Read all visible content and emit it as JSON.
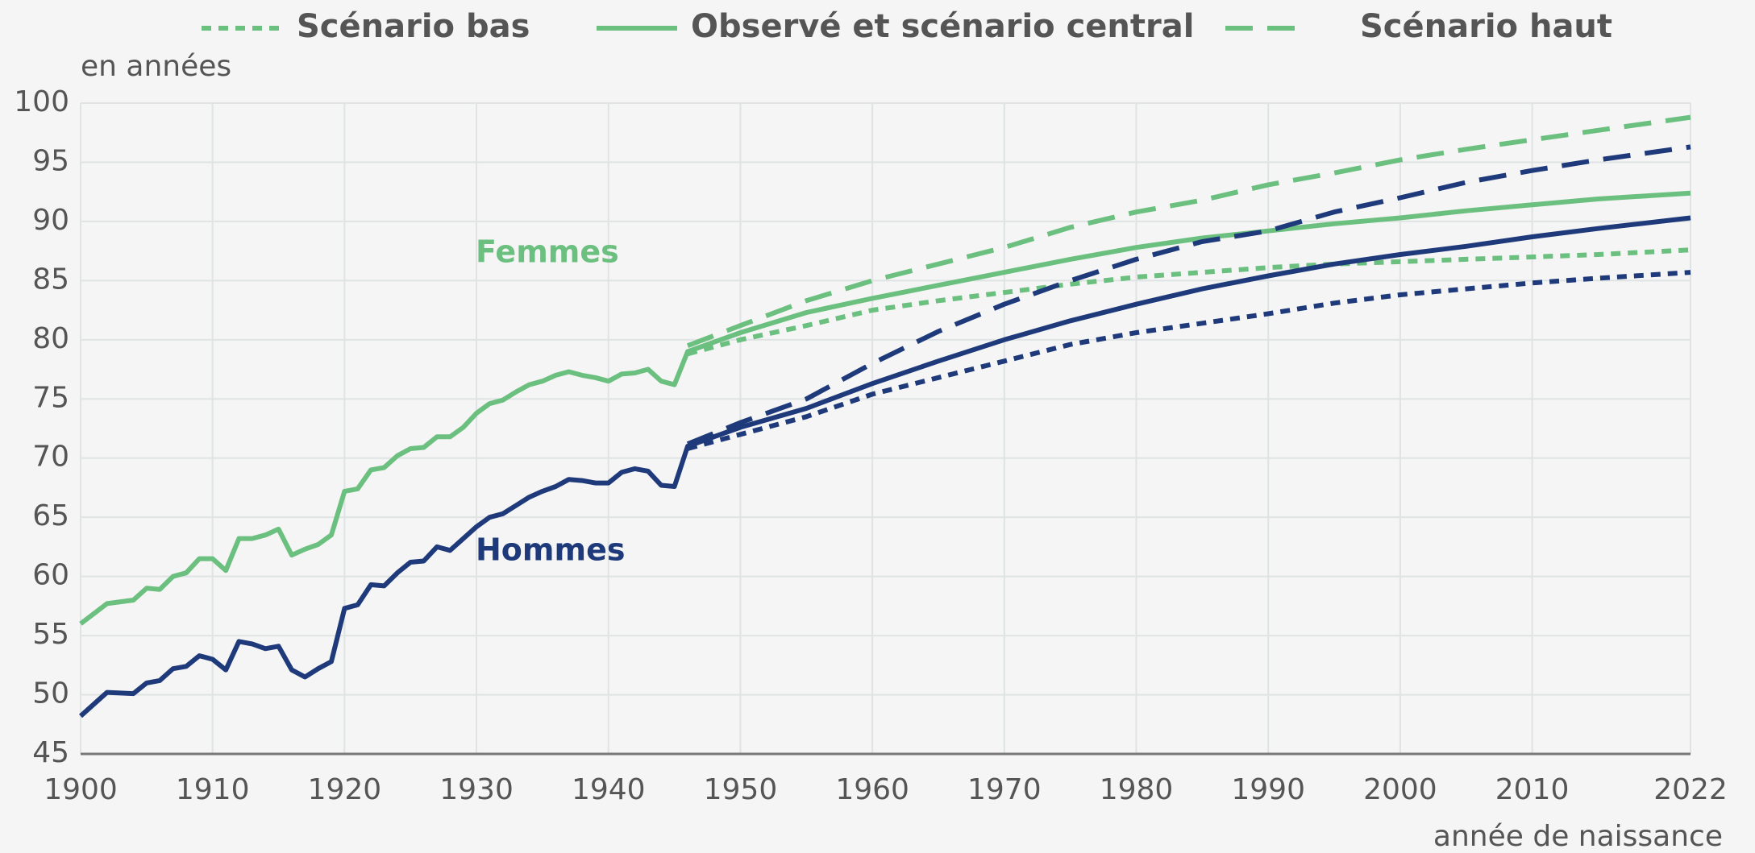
{
  "chart_data": {
    "type": "line",
    "y_label": "en années",
    "x_label": "année de naissance",
    "xlim": [
      1900,
      2022
    ],
    "xticks": [
      1900,
      1910,
      1920,
      1930,
      1940,
      1950,
      1960,
      1970,
      1980,
      1990,
      2000,
      2010,
      2022
    ],
    "ylim": [
      45,
      100
    ],
    "yticks": [
      45,
      50,
      55,
      60,
      65,
      70,
      75,
      80,
      85,
      90,
      95,
      100
    ],
    "grid": true,
    "legend": {
      "position": "top",
      "entries": [
        {
          "name": "Scénario bas",
          "style": "short-dash",
          "scenario": "bas"
        },
        {
          "name": "Observé et scénario central",
          "style": "solid",
          "scenario": "central"
        },
        {
          "name": "Scénario haut",
          "style": "long-dash",
          "scenario": "haut"
        }
      ]
    },
    "series": [
      {
        "name": "Femmes",
        "color": "#6cc07f",
        "central": {
          "x": [
            1900,
            1902,
            1904,
            1905,
            1906,
            1907,
            1908,
            1909,
            1910,
            1911,
            1912,
            1913,
            1914,
            1915,
            1916,
            1917,
            1918,
            1919,
            1920,
            1921,
            1922,
            1923,
            1924,
            1925,
            1926,
            1927,
            1928,
            1929,
            1930,
            1931,
            1932,
            1933,
            1934,
            1935,
            1936,
            1937,
            1938,
            1939,
            1940,
            1941,
            1942,
            1943,
            1944,
            1945,
            1946,
            1950,
            1955,
            1960,
            1965,
            1970,
            1975,
            1980,
            1985,
            1990,
            1995,
            2000,
            2005,
            2010,
            2015,
            2022
          ],
          "values": [
            56,
            57.7,
            58,
            59,
            58.9,
            60,
            60.3,
            61.5,
            61.5,
            60.5,
            63.2,
            63.2,
            63.5,
            64,
            61.8,
            62.3,
            62.7,
            63.5,
            67.2,
            67.4,
            69,
            69.2,
            70.2,
            70.8,
            70.9,
            71.8,
            71.8,
            72.6,
            73.8,
            74.6,
            74.9,
            75.6,
            76.2,
            76.5,
            77,
            77.3,
            77,
            76.8,
            76.5,
            77.1,
            77.2,
            77.5,
            76.5,
            76.2,
            79,
            80.6,
            82.3,
            83.5,
            84.6,
            85.7,
            86.8,
            87.8,
            88.6,
            89.2,
            89.8,
            90.3,
            90.9,
            91.4,
            91.9,
            92.4
          ]
        },
        "bas": {
          "x": [
            1946,
            1950,
            1955,
            1960,
            1965,
            1970,
            1975,
            1980,
            1985,
            1990,
            1995,
            2000,
            2005,
            2010,
            2015,
            2022
          ],
          "values": [
            78.8,
            80,
            81.2,
            82.5,
            83.3,
            84,
            84.7,
            85.3,
            85.7,
            86.1,
            86.4,
            86.6,
            86.8,
            87,
            87.2,
            87.6
          ]
        },
        "haut": {
          "x": [
            1946,
            1950,
            1955,
            1960,
            1965,
            1970,
            1975,
            1980,
            1985,
            1990,
            1995,
            2000,
            2005,
            2010,
            2015,
            2022
          ],
          "values": [
            79.5,
            81.2,
            83.3,
            85,
            86.4,
            87.8,
            89.5,
            90.8,
            91.8,
            93.1,
            94.1,
            95.2,
            96.1,
            96.9,
            97.7,
            98.8
          ]
        }
      },
      {
        "name": "Hommes",
        "color": "#1f3a7a",
        "central": {
          "x": [
            1900,
            1902,
            1904,
            1905,
            1906,
            1907,
            1908,
            1909,
            1910,
            1911,
            1912,
            1913,
            1914,
            1915,
            1916,
            1917,
            1918,
            1919,
            1920,
            1921,
            1922,
            1923,
            1924,
            1925,
            1926,
            1927,
            1928,
            1929,
            1930,
            1931,
            1932,
            1933,
            1934,
            1935,
            1936,
            1937,
            1938,
            1939,
            1940,
            1941,
            1942,
            1943,
            1944,
            1945,
            1946,
            1950,
            1955,
            1960,
            1965,
            1970,
            1975,
            1980,
            1985,
            1990,
            1995,
            2000,
            2005,
            2010,
            2015,
            2022
          ],
          "values": [
            48.2,
            50.2,
            50.1,
            51,
            51.2,
            52.2,
            52.4,
            53.3,
            53,
            52.1,
            54.5,
            54.3,
            53.9,
            54.1,
            52.1,
            51.5,
            52.2,
            52.8,
            57.3,
            57.6,
            59.3,
            59.2,
            60.3,
            61.2,
            61.3,
            62.5,
            62.2,
            63.2,
            64.2,
            65,
            65.3,
            66,
            66.7,
            67.2,
            67.6,
            68.2,
            68.1,
            67.9,
            67.9,
            68.8,
            69.1,
            68.9,
            67.7,
            67.6,
            71,
            72.6,
            74.2,
            76.3,
            78.2,
            80,
            81.6,
            83,
            84.3,
            85.4,
            86.4,
            87.2,
            87.9,
            88.7,
            89.4,
            90.3
          ]
        },
        "bas": {
          "x": [
            1946,
            1950,
            1955,
            1960,
            1965,
            1970,
            1975,
            1980,
            1985,
            1990,
            1995,
            2000,
            2005,
            2010,
            2015,
            2022
          ],
          "values": [
            70.8,
            72,
            73.5,
            75.4,
            76.8,
            78.2,
            79.6,
            80.6,
            81.4,
            82.2,
            83.1,
            83.8,
            84.3,
            84.8,
            85.2,
            85.7
          ]
        },
        "haut": {
          "x": [
            1946,
            1950,
            1955,
            1960,
            1965,
            1970,
            1975,
            1980,
            1985,
            1990,
            1995,
            2000,
            2005,
            2010,
            2015,
            2022
          ],
          "values": [
            71.2,
            73,
            75,
            78,
            80.7,
            83,
            85,
            86.8,
            88.3,
            89.2,
            90.8,
            92,
            93.3,
            94.3,
            95.2,
            96.3
          ]
        }
      }
    ]
  }
}
